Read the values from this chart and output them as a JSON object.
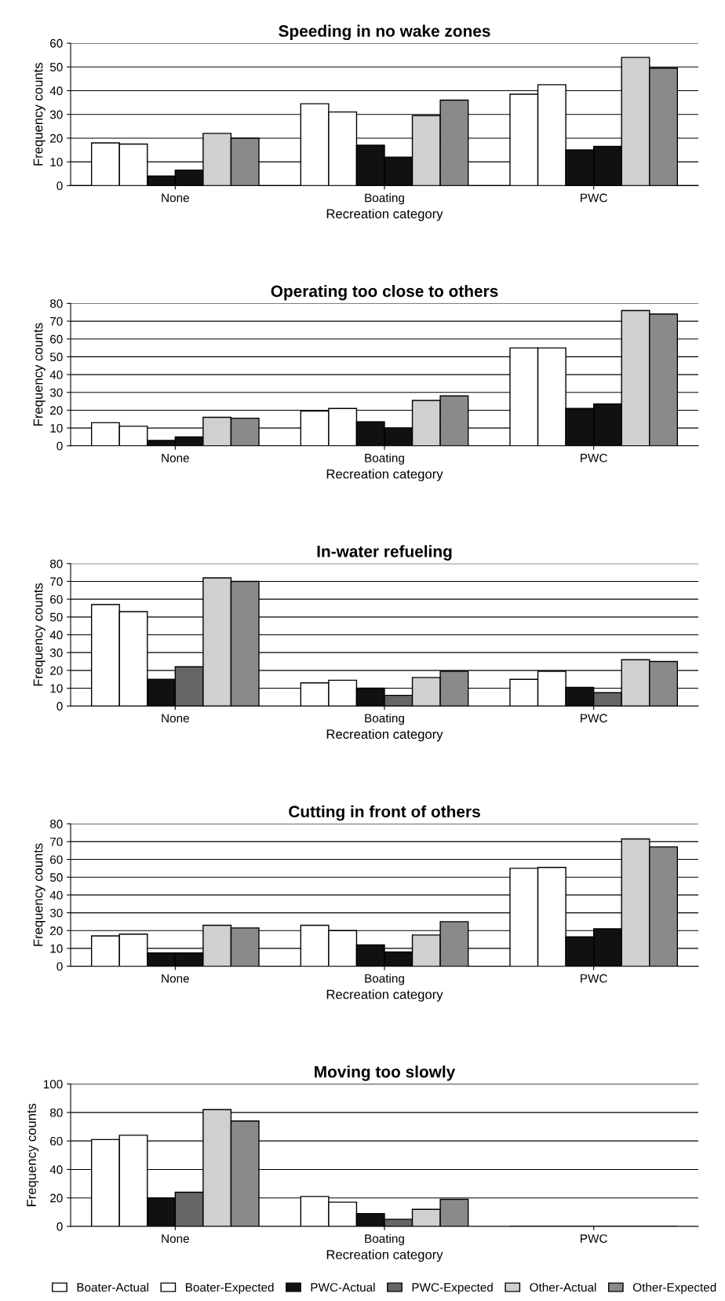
{
  "chart_data": [
    {
      "type": "bar",
      "title": "Speeding in no wake zones",
      "xlabel": "Recreation category",
      "ylabel": "Frequency counts",
      "categories": [
        "None",
        "Boating",
        "PWC"
      ],
      "ylim": [
        0,
        60
      ],
      "yticks": [
        0,
        10,
        20,
        30,
        40,
        50,
        60
      ],
      "grid": "y",
      "legend": false,
      "series": [
        {
          "color": "#ffffff",
          "values": [
            18,
            34.5,
            38.5
          ]
        },
        {
          "color": "#ffffff",
          "values": [
            17.5,
            31,
            42.5
          ]
        },
        {
          "color": "#111111",
          "values": [
            4,
            17,
            15
          ]
        },
        {
          "color": "#111111",
          "values": [
            6.5,
            12,
            16.5
          ]
        },
        {
          "color": "#d0d0d0",
          "values": [
            22,
            29.5,
            54
          ]
        },
        {
          "color": "#8a8a8a",
          "values": [
            20,
            36,
            49.5
          ]
        }
      ]
    },
    {
      "type": "bar",
      "title": "Operating too close to others",
      "xlabel": "Recreation category",
      "ylabel": "Frequency counts",
      "categories": [
        "None",
        "Boating",
        "PWC"
      ],
      "ylim": [
        0,
        80
      ],
      "yticks": [
        0,
        10,
        20,
        30,
        40,
        50,
        60,
        70,
        80
      ],
      "grid": "y",
      "legend": false,
      "series": [
        {
          "color": "#ffffff",
          "values": [
            13,
            19.5,
            55
          ]
        },
        {
          "color": "#ffffff",
          "values": [
            11,
            21,
            55
          ]
        },
        {
          "color": "#111111",
          "values": [
            3,
            13.5,
            21
          ]
        },
        {
          "color": "#111111",
          "values": [
            5,
            10,
            23.5
          ]
        },
        {
          "color": "#d0d0d0",
          "values": [
            16,
            25.5,
            76
          ]
        },
        {
          "color": "#8a8a8a",
          "values": [
            15.5,
            28,
            74
          ]
        }
      ]
    },
    {
      "type": "bar",
      "title": "In-water refueling",
      "xlabel": "Recreation category",
      "ylabel": "Frequency counts",
      "categories": [
        "None",
        "Boating",
        "PWC"
      ],
      "ylim": [
        0,
        80
      ],
      "yticks": [
        0,
        10,
        20,
        30,
        40,
        50,
        60,
        70,
        80
      ],
      "grid": "y",
      "legend": false,
      "series": [
        {
          "color": "#ffffff",
          "values": [
            57,
            13,
            15
          ]
        },
        {
          "color": "#ffffff",
          "values": [
            53,
            14.5,
            19.5
          ]
        },
        {
          "color": "#111111",
          "values": [
            15,
            10,
            10.5
          ]
        },
        {
          "color": "#666666",
          "values": [
            22,
            6,
            7.5
          ]
        },
        {
          "color": "#d0d0d0",
          "values": [
            72,
            16,
            26
          ]
        },
        {
          "color": "#8a8a8a",
          "values": [
            70,
            19.5,
            25
          ]
        }
      ]
    },
    {
      "type": "bar",
      "title": "Cutting in front of others",
      "xlabel": "Recreation category",
      "ylabel": "Frequency counts",
      "categories": [
        "None",
        "Boating",
        "PWC"
      ],
      "ylim": [
        0,
        80
      ],
      "yticks": [
        0,
        10,
        20,
        30,
        40,
        50,
        60,
        70,
        80
      ],
      "grid": "y",
      "legend": false,
      "series": [
        {
          "color": "#ffffff",
          "values": [
            17,
            23,
            55
          ]
        },
        {
          "color": "#ffffff",
          "values": [
            18,
            20,
            55.5
          ]
        },
        {
          "color": "#111111",
          "values": [
            7.5,
            12,
            16.5
          ]
        },
        {
          "color": "#111111",
          "values": [
            7.5,
            8,
            21
          ]
        },
        {
          "color": "#d0d0d0",
          "values": [
            23,
            17.5,
            71.5
          ]
        },
        {
          "color": "#8a8a8a",
          "values": [
            21.5,
            25,
            67
          ]
        }
      ]
    },
    {
      "type": "bar",
      "title": "Moving too slowly",
      "xlabel": "Recreation category",
      "ylabel": "Frequency counts",
      "categories": [
        "None",
        "Boating",
        "PWC"
      ],
      "ylim": [
        0,
        100
      ],
      "yticks": [
        0,
        20,
        40,
        60,
        80,
        100
      ],
      "grid": "y",
      "legend": "bottom",
      "series": [
        {
          "name": "Boater-Actual",
          "color": "#ffffff",
          "values": [
            61,
            21,
            0
          ]
        },
        {
          "name": "Boater-Expected",
          "color": "#ffffff",
          "values": [
            64,
            17,
            0
          ]
        },
        {
          "name": "PWC-Actual",
          "color": "#111111",
          "values": [
            20,
            9,
            0
          ]
        },
        {
          "name": "PWC-Expected",
          "color": "#666666",
          "values": [
            24,
            5,
            0
          ]
        },
        {
          "name": "Other-Actual",
          "color": "#d0d0d0",
          "values": [
            82,
            12,
            0
          ]
        },
        {
          "name": "Other-Expected",
          "color": "#8a8a8a",
          "values": [
            74,
            19,
            0
          ]
        }
      ]
    }
  ]
}
